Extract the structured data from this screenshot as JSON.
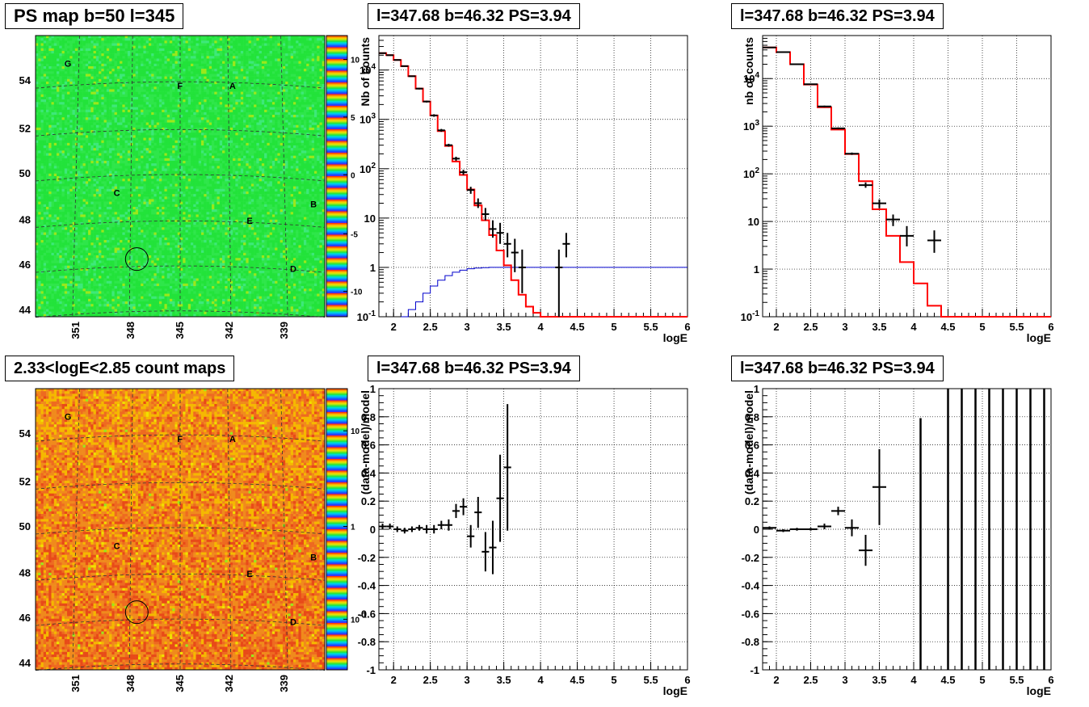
{
  "panels": {
    "map_top": {
      "title": "PS map b=50 l=345",
      "y_ticks": [
        "44",
        "46",
        "48",
        "50",
        "52",
        "54"
      ],
      "x_ticks": [
        "351",
        "348",
        "345",
        "342",
        "339"
      ],
      "colorbar_ticks": [
        "10",
        "5",
        "0",
        "-5",
        "-10"
      ],
      "source_labels": [
        "G",
        "F",
        "A",
        "C",
        "B",
        "E",
        "D"
      ]
    },
    "map_bottom": {
      "title": "2.33<logE<2.85 count maps",
      "y_ticks": [
        "44",
        "46",
        "48",
        "50",
        "52",
        "54"
      ],
      "x_ticks": [
        "351",
        "348",
        "345",
        "342",
        "339"
      ],
      "colorbar_ticks": [
        "10",
        "1",
        "10^-1"
      ],
      "source_labels": [
        "G",
        "F",
        "A",
        "C",
        "B",
        "E",
        "D"
      ]
    },
    "spec_mid": {
      "title": "l=347.68 b=46.32 PS=3.94"
    },
    "spec_right": {
      "title": "l=347.68 b=46.32 PS=3.94"
    },
    "resid_mid": {
      "title": "l=347.68 b=46.32 PS=3.94"
    },
    "resid_right": {
      "title": "l=347.68 b=46.32 PS=3.94"
    }
  },
  "colors": {
    "model": "#ff0000",
    "data": "#000000",
    "background_model": "#0000cc",
    "map_green": "#22e33a",
    "map_orange": "#ef7a1e"
  },
  "chart_data": [
    {
      "type": "line",
      "id": "spec_mid",
      "title": "l=347.68 b=46.32 PS=3.94",
      "xlabel": "logE",
      "ylabel": "Nb of counts",
      "xlim": [
        1.8,
        6
      ],
      "ylim": [
        0.1,
        50000
      ],
      "yscale": "log",
      "x_ticks": [
        "2",
        "2.5",
        "3",
        "3.5",
        "4",
        "4.5",
        "5",
        "5.5",
        "6"
      ],
      "y_ticks": [
        "10^-1",
        "1",
        "10",
        "10^2",
        "10^3",
        "10^4"
      ],
      "grid": true,
      "model_steps": {
        "edges": [
          1.8,
          1.9,
          2.0,
          2.1,
          2.2,
          2.3,
          2.4,
          2.5,
          2.6,
          2.7,
          2.8,
          2.9,
          3.0,
          3.1,
          3.2,
          3.3,
          3.4,
          3.5,
          3.6,
          3.7,
          3.8,
          3.9,
          4.0,
          4.1,
          4.2,
          4.3,
          4.4,
          6.0
        ],
        "values": [
          22000,
          20000,
          16000,
          12000,
          7500,
          4200,
          2300,
          1200,
          580,
          290,
          140,
          75,
          38,
          18,
          9,
          4.5,
          2.2,
          1.1,
          0.55,
          0.28,
          0.16,
          0.12,
          0.1,
          0.1,
          0.1,
          0.1,
          0.1
        ]
      },
      "background_steps": {
        "edges": [
          2.1,
          2.2,
          2.3,
          2.4,
          2.5,
          2.6,
          2.7,
          2.8,
          2.9,
          3.0,
          3.1,
          3.2,
          3.3,
          3.4,
          3.5,
          6.0
        ],
        "values": [
          0.1,
          0.14,
          0.2,
          0.3,
          0.42,
          0.55,
          0.68,
          0.8,
          0.88,
          0.94,
          0.97,
          0.99,
          1.0,
          1.0,
          1.0
        ]
      },
      "points": [
        {
          "x": 1.85,
          "y": 22000,
          "yerr_low": 21500,
          "yerr_high": 22500
        },
        {
          "x": 1.95,
          "y": 20000,
          "yerr_low": 19500,
          "yerr_high": 20500
        },
        {
          "x": 2.05,
          "y": 16000,
          "yerr_low": 15600,
          "yerr_high": 16400
        },
        {
          "x": 2.15,
          "y": 12000,
          "yerr_low": 11700,
          "yerr_high": 12300
        },
        {
          "x": 2.25,
          "y": 7500,
          "yerr_low": 7300,
          "yerr_high": 7700
        },
        {
          "x": 2.35,
          "y": 4200,
          "yerr_low": 4050,
          "yerr_high": 4350
        },
        {
          "x": 2.45,
          "y": 2300,
          "yerr_low": 2200,
          "yerr_high": 2400
        },
        {
          "x": 2.55,
          "y": 1200,
          "yerr_low": 1130,
          "yerr_high": 1270
        },
        {
          "x": 2.65,
          "y": 600,
          "yerr_low": 560,
          "yerr_high": 640
        },
        {
          "x": 2.75,
          "y": 300,
          "yerr_low": 280,
          "yerr_high": 320
        },
        {
          "x": 2.85,
          "y": 160,
          "yerr_low": 145,
          "yerr_high": 175
        },
        {
          "x": 2.95,
          "y": 85,
          "yerr_low": 75,
          "yerr_high": 95
        },
        {
          "x": 3.05,
          "y": 37,
          "yerr_low": 31,
          "yerr_high": 43
        },
        {
          "x": 3.15,
          "y": 20,
          "yerr_low": 16,
          "yerr_high": 25
        },
        {
          "x": 3.25,
          "y": 12,
          "yerr_low": 9,
          "yerr_high": 16
        },
        {
          "x": 3.35,
          "y": 6,
          "yerr_low": 4,
          "yerr_high": 9
        },
        {
          "x": 3.45,
          "y": 5,
          "yerr_low": 3,
          "yerr_high": 8
        },
        {
          "x": 3.55,
          "y": 3,
          "yerr_low": 1.6,
          "yerr_high": 5
        },
        {
          "x": 3.65,
          "y": 2,
          "yerr_low": 0.8,
          "yerr_high": 3.8
        },
        {
          "x": 3.75,
          "y": 1,
          "yerr_low": 0.3,
          "yerr_high": 2.3
        },
        {
          "x": 4.25,
          "y": 1,
          "yerr_low": 0.1,
          "yerr_high": 2.3
        },
        {
          "x": 4.35,
          "y": 3,
          "yerr_low": 1.6,
          "yerr_high": 5
        }
      ]
    },
    {
      "type": "line",
      "id": "spec_right",
      "title": "l=347.68 b=46.32 PS=3.94",
      "xlabel": "logE",
      "ylabel": "nb of counts",
      "xlim": [
        1.8,
        6
      ],
      "ylim": [
        0.1,
        80000
      ],
      "yscale": "log",
      "x_ticks": [
        "2",
        "2.5",
        "3",
        "3.5",
        "4",
        "4.5",
        "5",
        "5.5",
        "6"
      ],
      "y_ticks": [
        "10^-1",
        "1",
        "10",
        "10^2",
        "10^3",
        "10^4"
      ],
      "grid": true,
      "model_steps": {
        "edges": [
          1.8,
          2.0,
          2.2,
          2.4,
          2.6,
          2.8,
          3.0,
          3.2,
          3.4,
          3.6,
          3.8,
          4.0,
          4.2,
          4.4,
          4.6,
          6.0
        ],
        "values": [
          45000,
          36000,
          20000,
          7500,
          2500,
          850,
          260,
          70,
          18,
          5,
          1.4,
          0.5,
          0.17,
          0.1,
          0.1
        ]
      },
      "points": [
        {
          "x": 1.9,
          "y": 45000,
          "yerr_low": 44500,
          "yerr_high": 45500
        },
        {
          "x": 2.1,
          "y": 36000,
          "yerr_low": 35500,
          "yerr_high": 36500
        },
        {
          "x": 2.3,
          "y": 20000,
          "yerr_low": 19700,
          "yerr_high": 20300
        },
        {
          "x": 2.5,
          "y": 7600,
          "yerr_low": 7400,
          "yerr_high": 7800
        },
        {
          "x": 2.7,
          "y": 2600,
          "yerr_low": 2500,
          "yerr_high": 2700
        },
        {
          "x": 2.9,
          "y": 900,
          "yerr_low": 860,
          "yerr_high": 940
        },
        {
          "x": 3.1,
          "y": 265,
          "yerr_low": 250,
          "yerr_high": 280
        },
        {
          "x": 3.3,
          "y": 58,
          "yerr_low": 51,
          "yerr_high": 66
        },
        {
          "x": 3.5,
          "y": 24,
          "yerr_low": 19,
          "yerr_high": 29
        },
        {
          "x": 3.7,
          "y": 11,
          "yerr_low": 8,
          "yerr_high": 14
        },
        {
          "x": 3.9,
          "y": 5,
          "yerr_low": 3,
          "yerr_high": 8
        },
        {
          "x": 4.3,
          "y": 4,
          "yerr_low": 2.2,
          "yerr_high": 6.5
        }
      ]
    },
    {
      "type": "scatter",
      "id": "resid_mid",
      "title": "l=347.68 b=46.32 PS=3.94",
      "xlabel": "logE",
      "ylabel": "(data-model)/model",
      "xlim": [
        1.8,
        6
      ],
      "ylim": [
        -1,
        1
      ],
      "x_ticks": [
        "2",
        "2.5",
        "3",
        "3.5",
        "4",
        "4.5",
        "5",
        "5.5",
        "6"
      ],
      "y_ticks": [
        "-1",
        "-0.8",
        "-0.6",
        "-0.4",
        "-0.2",
        "0",
        "0.2",
        "0.4",
        "0.6",
        "0.8",
        "1"
      ],
      "grid": true,
      "points": [
        {
          "x": 1.85,
          "y": 0.02,
          "yerr": 0.02
        },
        {
          "x": 1.95,
          "y": 0.02,
          "yerr": 0.02
        },
        {
          "x": 2.05,
          "y": 0.0,
          "yerr": 0.02
        },
        {
          "x": 2.15,
          "y": -0.01,
          "yerr": 0.02
        },
        {
          "x": 2.25,
          "y": 0.0,
          "yerr": 0.02
        },
        {
          "x": 2.35,
          "y": 0.01,
          "yerr": 0.02
        },
        {
          "x": 2.45,
          "y": 0.0,
          "yerr": 0.03
        },
        {
          "x": 2.55,
          "y": 0.0,
          "yerr": 0.03
        },
        {
          "x": 2.65,
          "y": 0.03,
          "yerr": 0.03
        },
        {
          "x": 2.75,
          "y": 0.03,
          "yerr": 0.04
        },
        {
          "x": 2.85,
          "y": 0.13,
          "yerr": 0.05
        },
        {
          "x": 2.95,
          "y": 0.16,
          "yerr": 0.06
        },
        {
          "x": 3.05,
          "y": -0.05,
          "yerr": 0.08
        },
        {
          "x": 3.15,
          "y": 0.12,
          "yerr": 0.11
        },
        {
          "x": 3.25,
          "y": -0.16,
          "yerr": 0.14
        },
        {
          "x": 3.35,
          "y": -0.13,
          "yerr": 0.19
        },
        {
          "x": 3.45,
          "y": 0.22,
          "yerr": 0.31
        },
        {
          "x": 3.55,
          "y": 0.44,
          "yerr": 0.45
        }
      ]
    },
    {
      "type": "scatter",
      "id": "resid_right",
      "title": "l=347.68 b=46.32 PS=3.94",
      "xlabel": "logE",
      "ylabel": "(data-model)/model",
      "xlim": [
        1.8,
        6
      ],
      "ylim": [
        -1,
        1
      ],
      "x_ticks": [
        "2",
        "2.5",
        "3",
        "3.5",
        "4",
        "4.5",
        "5",
        "5.5",
        "6"
      ],
      "y_ticks": [
        "-1",
        "-0.8",
        "-0.6",
        "-0.4",
        "-0.2",
        "0",
        "0.2",
        "0.4",
        "0.6",
        "0.8",
        "1"
      ],
      "grid": true,
      "points": [
        {
          "x": 1.9,
          "y": 0.01,
          "yerr": 0.01
        },
        {
          "x": 2.1,
          "y": -0.01,
          "yerr": 0.01
        },
        {
          "x": 2.3,
          "y": 0.0,
          "yerr": 0.01
        },
        {
          "x": 2.5,
          "y": 0.0,
          "yerr": 0.01
        },
        {
          "x": 2.7,
          "y": 0.02,
          "yerr": 0.02
        },
        {
          "x": 2.9,
          "y": 0.13,
          "yerr": 0.03
        },
        {
          "x": 3.1,
          "y": 0.01,
          "yerr": 0.06
        },
        {
          "x": 3.3,
          "y": -0.15,
          "yerr": 0.11
        },
        {
          "x": 3.5,
          "y": 0.3,
          "yerr": 0.27
        }
      ],
      "error_bars_only": [
        {
          "x": 4.1,
          "y_low": -1,
          "y_high": 0.79
        },
        {
          "x": 4.5,
          "y_low": -1,
          "y_high": 1
        },
        {
          "x": 4.7,
          "y_low": -1,
          "y_high": 1
        },
        {
          "x": 4.9,
          "y_low": -1,
          "y_high": 1
        },
        {
          "x": 5.1,
          "y_low": -1,
          "y_high": 1
        },
        {
          "x": 5.3,
          "y_low": -1,
          "y_high": 1
        },
        {
          "x": 5.5,
          "y_low": -1,
          "y_high": 1
        },
        {
          "x": 5.7,
          "y_low": -1,
          "y_high": 1
        },
        {
          "x": 5.9,
          "y_low": -1,
          "y_high": 1
        }
      ]
    }
  ]
}
